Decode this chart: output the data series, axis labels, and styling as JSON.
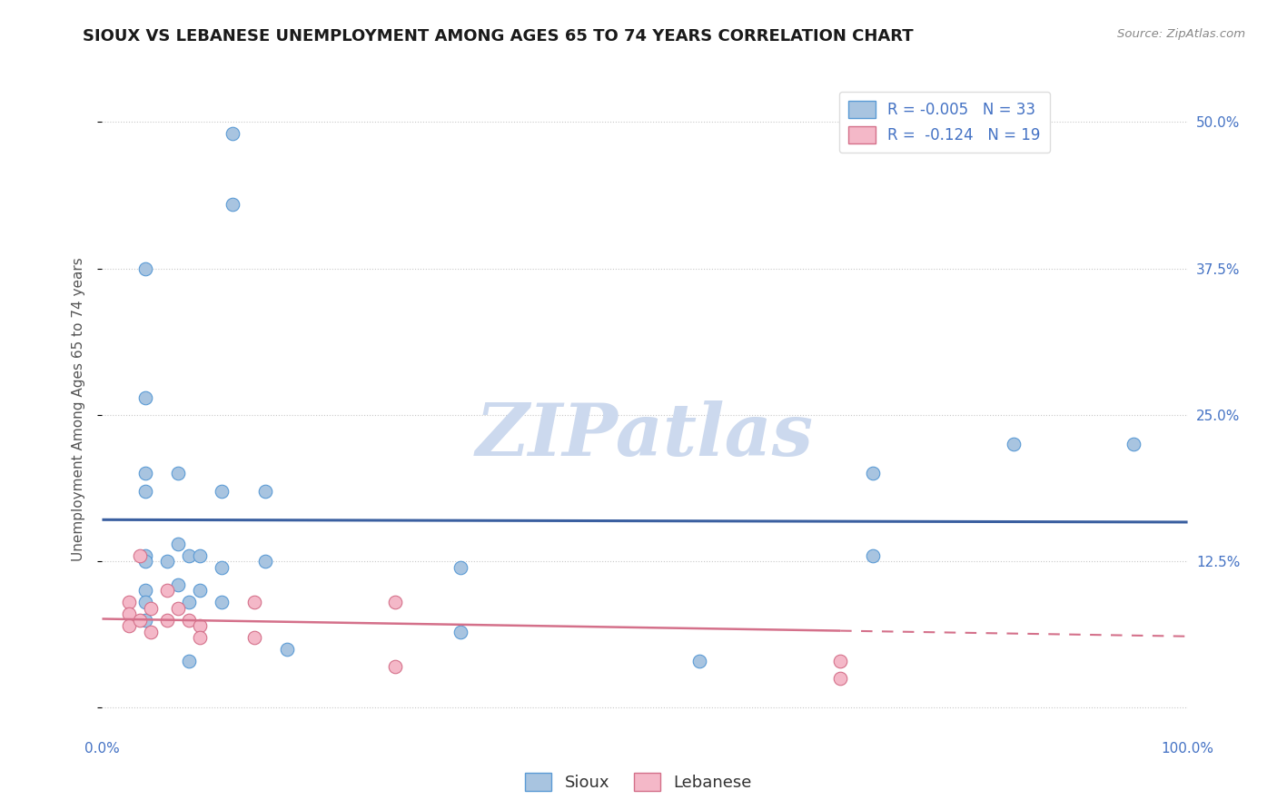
{
  "title": "SIOUX VS LEBANESE UNEMPLOYMENT AMONG AGES 65 TO 74 YEARS CORRELATION CHART",
  "source_text": "Source: ZipAtlas.com",
  "ylabel": "Unemployment Among Ages 65 to 74 years",
  "xlim": [
    0.0,
    1.0
  ],
  "ylim": [
    -0.025,
    0.535
  ],
  "sioux_color": "#a8c4e0",
  "sioux_edge_color": "#5b9bd5",
  "lebanese_color": "#f4b8c8",
  "lebanese_edge_color": "#d4708a",
  "trend_sioux_color": "#3a5fa0",
  "trend_lebanese_color": "#d4708a",
  "legend_text_color": "#4472c4",
  "R_sioux": -0.005,
  "N_sioux": 33,
  "R_lebanese": -0.124,
  "N_lebanese": 19,
  "watermark": "ZIPatlas",
  "watermark_color": "#ccd9ee",
  "sioux_x": [
    0.12,
    0.12,
    0.04,
    0.04,
    0.04,
    0.04,
    0.04,
    0.04,
    0.04,
    0.04,
    0.04,
    0.07,
    0.07,
    0.07,
    0.08,
    0.08,
    0.08,
    0.09,
    0.09,
    0.11,
    0.11,
    0.11,
    0.15,
    0.15,
    0.17,
    0.33,
    0.33,
    0.55,
    0.71,
    0.71,
    0.84,
    0.95,
    0.06
  ],
  "sioux_y": [
    0.49,
    0.43,
    0.375,
    0.265,
    0.2,
    0.185,
    0.13,
    0.125,
    0.1,
    0.09,
    0.075,
    0.2,
    0.14,
    0.105,
    0.13,
    0.09,
    0.04,
    0.13,
    0.1,
    0.185,
    0.12,
    0.09,
    0.185,
    0.125,
    0.05,
    0.12,
    0.065,
    0.04,
    0.2,
    0.13,
    0.225,
    0.225,
    0.125
  ],
  "lebanese_x": [
    0.025,
    0.025,
    0.025,
    0.035,
    0.035,
    0.045,
    0.045,
    0.06,
    0.06,
    0.07,
    0.08,
    0.09,
    0.09,
    0.14,
    0.14,
    0.27,
    0.27,
    0.68,
    0.68
  ],
  "lebanese_y": [
    0.09,
    0.08,
    0.07,
    0.13,
    0.075,
    0.085,
    0.065,
    0.1,
    0.075,
    0.085,
    0.075,
    0.07,
    0.06,
    0.09,
    0.06,
    0.09,
    0.035,
    0.04,
    0.025
  ],
  "background_color": "#ffffff",
  "grid_color": "#c8c8c8",
  "title_fontsize": 13,
  "axis_fontsize": 11,
  "tick_fontsize": 11,
  "legend_fontsize": 12,
  "dot_size": 110
}
